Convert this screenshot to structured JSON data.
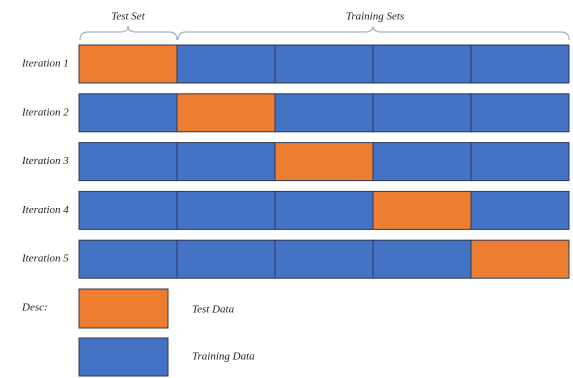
{
  "header": {
    "test_set": "Test Set",
    "training_sets": "Training Sets"
  },
  "folds": 5,
  "iterations": [
    {
      "label": "Iteration 1",
      "test_fold": 1
    },
    {
      "label": "Iteration 2",
      "test_fold": 2
    },
    {
      "label": "Iteration 3",
      "test_fold": 3
    },
    {
      "label": "Iteration 4",
      "test_fold": 4
    },
    {
      "label": "Iteration 5",
      "test_fold": 5
    }
  ],
  "legend": {
    "title": "Desc:",
    "test": "Test Data",
    "training": "Training Data"
  },
  "colors": {
    "test": "#ed7d31",
    "training": "#4472c4"
  }
}
